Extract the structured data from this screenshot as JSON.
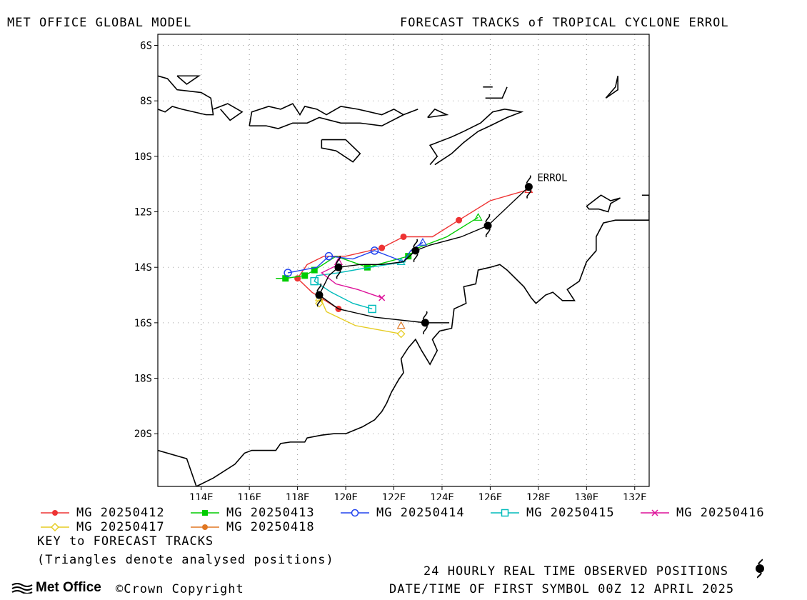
{
  "header": {
    "left_title": "MET OFFICE GLOBAL MODEL",
    "right_title": "FORECAST TRACKS of TROPICAL CYCLONE ERROL"
  },
  "map": {
    "lon_range": [
      112.2,
      132.6
    ],
    "lat_range": [
      -21.9,
      -5.6
    ],
    "x_ticks": [
      {
        "lon": 114,
        "label": "114E"
      },
      {
        "lon": 116,
        "label": "116E"
      },
      {
        "lon": 118,
        "label": "118E"
      },
      {
        "lon": 120,
        "label": "120E"
      },
      {
        "lon": 122,
        "label": "122E"
      },
      {
        "lon": 124,
        "label": "124E"
      },
      {
        "lon": 126,
        "label": "126E"
      },
      {
        "lon": 128,
        "label": "128E"
      },
      {
        "lon": 130,
        "label": "130E"
      },
      {
        "lon": 132,
        "label": "132E"
      }
    ],
    "y_ticks": [
      {
        "lat": -6,
        "label": "6S"
      },
      {
        "lat": -8,
        "label": "8S"
      },
      {
        "lat": -10,
        "label": "10S"
      },
      {
        "lat": -12,
        "label": "12S"
      },
      {
        "lat": -14,
        "label": "14S"
      },
      {
        "lat": -16,
        "label": "16S"
      },
      {
        "lat": -18,
        "label": "18S"
      },
      {
        "lat": -20,
        "label": "20S"
      }
    ],
    "grid": true,
    "storm_label": "ERROL"
  },
  "coastlines": [
    [
      [
        112.2,
        -20.6
      ],
      [
        113.4,
        -20.9
      ],
      [
        113.8,
        -21.9
      ]
    ],
    [
      [
        113.8,
        -21.9
      ],
      [
        114.5,
        -21.6
      ],
      [
        115.4,
        -21.1
      ],
      [
        115.8,
        -20.7
      ],
      [
        116.1,
        -20.6
      ],
      [
        117.1,
        -20.6
      ],
      [
        117.3,
        -20.35
      ],
      [
        117.7,
        -20.3
      ],
      [
        118.3,
        -20.3
      ],
      [
        118.4,
        -20.15
      ],
      [
        119.0,
        -20.05
      ],
      [
        119.5,
        -20.0
      ],
      [
        120.0,
        -20.0
      ],
      [
        120.7,
        -19.75
      ],
      [
        121.2,
        -19.5
      ],
      [
        121.5,
        -19.2
      ],
      [
        121.7,
        -18.9
      ],
      [
        121.9,
        -18.5
      ],
      [
        122.2,
        -18.05
      ],
      [
        122.4,
        -17.8
      ],
      [
        122.3,
        -17.3
      ],
      [
        122.6,
        -16.9
      ],
      [
        122.9,
        -16.6
      ],
      [
        123.15,
        -17.0
      ],
      [
        123.5,
        -17.5
      ],
      [
        123.8,
        -17.0
      ],
      [
        123.6,
        -16.6
      ],
      [
        123.9,
        -16.3
      ],
      [
        124.4,
        -16.2
      ],
      [
        124.5,
        -15.5
      ],
      [
        125.0,
        -15.3
      ],
      [
        124.9,
        -14.7
      ],
      [
        125.4,
        -14.6
      ],
      [
        125.5,
        -14.1
      ],
      [
        126.0,
        -14.0
      ],
      [
        126.4,
        -13.9
      ],
      [
        126.7,
        -14.1
      ],
      [
        127.4,
        -14.7
      ],
      [
        127.7,
        -15.1
      ],
      [
        127.9,
        -15.3
      ],
      [
        128.3,
        -15.0
      ],
      [
        128.6,
        -14.9
      ],
      [
        129.0,
        -15.2
      ],
      [
        129.5,
        -15.2
      ],
      [
        129.2,
        -14.8
      ],
      [
        129.7,
        -14.5
      ],
      [
        130.0,
        -13.8
      ],
      [
        130.4,
        -13.4
      ],
      [
        130.4,
        -12.9
      ],
      [
        130.7,
        -12.4
      ],
      [
        131.2,
        -12.3
      ],
      [
        132.6,
        -12.3
      ],
      [
        132.6,
        -11.4
      ],
      [
        132.3,
        -11.4
      ]
    ],
    [
      [
        130.0,
        -11.8
      ],
      [
        130.6,
        -11.4
      ],
      [
        131.0,
        -11.6
      ],
      [
        131.4,
        -11.5
      ],
      [
        131.0,
        -11.7
      ],
      [
        130.9,
        -12.0
      ],
      [
        130.5,
        -11.9
      ],
      [
        130.1,
        -11.9
      ],
      [
        130.0,
        -11.8
      ]
    ],
    [
      [
        112.2,
        -7.1
      ],
      [
        112.6,
        -7.2
      ],
      [
        113.0,
        -7.6
      ],
      [
        114.0,
        -7.7
      ],
      [
        114.4,
        -7.9
      ],
      [
        114.5,
        -8.5
      ],
      [
        114.2,
        -8.5
      ],
      [
        113.2,
        -8.3
      ],
      [
        112.8,
        -8.2
      ],
      [
        112.5,
        -8.4
      ],
      [
        112.2,
        -8.3
      ]
    ],
    [
      [
        113.0,
        -7.1
      ],
      [
        113.4,
        -7.4
      ],
      [
        113.9,
        -7.1
      ],
      [
        113.0,
        -7.1
      ]
    ],
    [
      [
        114.5,
        -8.3
      ],
      [
        115.1,
        -8.1
      ],
      [
        115.7,
        -8.4
      ],
      [
        115.2,
        -8.7
      ],
      [
        114.8,
        -8.3
      ]
    ],
    [
      [
        116.0,
        -8.9
      ],
      [
        116.1,
        -8.4
      ],
      [
        116.8,
        -8.2
      ],
      [
        117.3,
        -8.3
      ],
      [
        117.8,
        -8.1
      ],
      [
        118.1,
        -8.5
      ],
      [
        118.3,
        -8.2
      ],
      [
        118.8,
        -8.3
      ],
      [
        119.2,
        -8.5
      ],
      [
        119.8,
        -8.2
      ],
      [
        120.5,
        -8.3
      ],
      [
        121.5,
        -8.5
      ],
      [
        122.0,
        -8.3
      ],
      [
        122.4,
        -8.5
      ],
      [
        123.0,
        -8.3
      ],
      [
        122.4,
        -8.5
      ],
      [
        121.5,
        -8.9
      ],
      [
        120.6,
        -8.8
      ],
      [
        119.8,
        -8.8
      ],
      [
        118.9,
        -8.6
      ],
      [
        118.4,
        -8.8
      ],
      [
        117.8,
        -8.8
      ],
      [
        117.2,
        -9.0
      ],
      [
        116.7,
        -8.9
      ],
      [
        116.0,
        -8.9
      ]
    ],
    [
      [
        119.0,
        -9.4
      ],
      [
        120.0,
        -9.4
      ],
      [
        120.6,
        -9.9
      ],
      [
        120.3,
        -10.2
      ],
      [
        119.6,
        -9.8
      ],
      [
        119.0,
        -9.7
      ],
      [
        119.0,
        -9.4
      ]
    ],
    [
      [
        123.4,
        -8.6
      ],
      [
        123.7,
        -8.3
      ],
      [
        124.2,
        -8.5
      ],
      [
        123.4,
        -8.6
      ]
    ],
    [
      [
        123.5,
        -10.3
      ],
      [
        123.8,
        -10.0
      ],
      [
        123.5,
        -9.6
      ],
      [
        124.4,
        -9.3
      ],
      [
        124.9,
        -9.1
      ],
      [
        125.6,
        -8.8
      ],
      [
        126.1,
        -8.4
      ],
      [
        126.6,
        -8.3
      ],
      [
        127.3,
        -8.4
      ],
      [
        126.7,
        -8.6
      ],
      [
        126.0,
        -8.9
      ],
      [
        125.5,
        -9.1
      ],
      [
        124.9,
        -9.5
      ],
      [
        124.4,
        -9.9
      ],
      [
        123.7,
        -10.3
      ]
    ],
    [
      [
        125.8,
        -7.9
      ],
      [
        126.5,
        -7.9
      ],
      [
        126.7,
        -7.5
      ]
    ],
    [
      [
        125.7,
        -7.5
      ],
      [
        126.1,
        -7.5
      ]
    ],
    [
      [
        130.8,
        -7.9
      ],
      [
        131.2,
        -7.5
      ],
      [
        131.3,
        -7.1
      ],
      [
        131.3,
        -7.6
      ],
      [
        130.8,
        -7.9
      ]
    ]
  ],
  "observed": {
    "name": "OBSERVED",
    "color": "#000000",
    "points": [
      [
        127.6,
        -11.1
      ],
      [
        125.9,
        -12.5
      ],
      [
        122.9,
        -13.4
      ],
      [
        119.7,
        -14.0
      ],
      [
        118.9,
        -15.0
      ],
      [
        123.3,
        -16.0
      ]
    ],
    "path": [
      [
        127.6,
        -11.1
      ],
      [
        125.9,
        -12.5
      ],
      [
        124.8,
        -12.9
      ],
      [
        123.5,
        -13.2
      ],
      [
        122.9,
        -13.4
      ],
      [
        122.4,
        -13.8
      ],
      [
        121.5,
        -13.9
      ],
      [
        120.6,
        -13.9
      ],
      [
        119.7,
        -14.0
      ],
      [
        119.3,
        -14.3
      ],
      [
        118.9,
        -15.0
      ],
      [
        119.7,
        -15.5
      ],
      [
        121.2,
        -15.8
      ],
      [
        123.3,
        -16.0
      ],
      [
        124.3,
        -16.0
      ]
    ]
  },
  "series": [
    {
      "name": "MG 20250412",
      "color": "#ee3333",
      "marker": "circle-filled",
      "points": [
        [
          127.6,
          -11.2
        ],
        [
          126.0,
          -11.6
        ],
        [
          124.7,
          -12.3
        ],
        [
          123.6,
          -12.9
        ],
        [
          122.4,
          -12.9
        ],
        [
          121.5,
          -13.3
        ],
        [
          120.0,
          -13.6
        ],
        [
          119.1,
          -13.6
        ],
        [
          118.4,
          -13.9
        ],
        [
          118.0,
          -14.4
        ],
        [
          118.6,
          -14.9
        ],
        [
          119.7,
          -15.5
        ]
      ],
      "markers": [
        [
          124.7,
          -12.3
        ],
        [
          122.4,
          -12.9
        ],
        [
          121.5,
          -13.3
        ],
        [
          118.0,
          -14.4
        ],
        [
          119.7,
          -15.5
        ]
      ],
      "analysed": [
        127.6,
        -11.2
      ]
    },
    {
      "name": "MG 20250413",
      "color": "#00cc00",
      "marker": "square-filled",
      "points": [
        [
          125.5,
          -12.2
        ],
        [
          124.2,
          -12.9
        ],
        [
          123.0,
          -13.3
        ],
        [
          122.6,
          -13.6
        ],
        [
          120.9,
          -14.0
        ],
        [
          119.6,
          -13.6
        ],
        [
          118.7,
          -14.1
        ],
        [
          118.3,
          -14.3
        ],
        [
          117.5,
          -14.4
        ],
        [
          117.1,
          -14.4
        ]
      ],
      "markers": [
        [
          122.6,
          -13.6
        ],
        [
          120.9,
          -14.0
        ],
        [
          118.7,
          -14.1
        ],
        [
          118.3,
          -14.3
        ],
        [
          117.5,
          -14.4
        ]
      ],
      "analysed": [
        125.5,
        -12.2
      ]
    },
    {
      "name": "MG 20250414",
      "color": "#2244ee",
      "marker": "circle-open",
      "points": [
        [
          123.2,
          -13.1
        ],
        [
          122.7,
          -13.4
        ],
        [
          122.4,
          -13.8
        ],
        [
          121.2,
          -13.4
        ],
        [
          120.3,
          -13.7
        ],
        [
          119.3,
          -13.6
        ],
        [
          118.8,
          -14.0
        ],
        [
          117.6,
          -14.2
        ]
      ],
      "markers": [
        [
          121.2,
          -13.4
        ],
        [
          119.3,
          -13.6
        ],
        [
          117.6,
          -14.2
        ]
      ],
      "analysed": [
        123.2,
        -13.1
      ]
    },
    {
      "name": "MG 20250415",
      "color": "#00bbbb",
      "marker": "square-open",
      "points": [
        [
          122.5,
          -13.8
        ],
        [
          121.0,
          -14.0
        ],
        [
          119.7,
          -14.2
        ],
        [
          118.8,
          -14.3
        ],
        [
          118.7,
          -14.5
        ],
        [
          119.4,
          -14.9
        ],
        [
          120.3,
          -15.3
        ],
        [
          121.1,
          -15.5
        ]
      ],
      "markers": [
        [
          118.7,
          -14.5
        ],
        [
          121.1,
          -15.5
        ]
      ],
      "analysed": [
        122.3,
        -13.8
      ]
    },
    {
      "name": "MG 20250416",
      "color": "#dd1199",
      "marker": "x",
      "points": [
        [
          119.7,
          -13.9
        ],
        [
          119.0,
          -14.2
        ],
        [
          119.6,
          -14.6
        ],
        [
          120.5,
          -14.8
        ],
        [
          121.5,
          -15.1
        ]
      ],
      "markers": [
        [
          121.5,
          -15.1
        ]
      ],
      "analysed": [
        119.7,
        -13.8
      ]
    },
    {
      "name": "MG 20250417",
      "color": "#e6cc22",
      "marker": "diamond-open",
      "points": [
        [
          118.9,
          -15.0
        ],
        [
          119.2,
          -15.6
        ],
        [
          120.4,
          -16.1
        ],
        [
          122.3,
          -16.4
        ]
      ],
      "markers": [
        [
          118.9,
          -15.3
        ],
        [
          122.3,
          -16.4
        ]
      ],
      "analysed": [
        118.9,
        -15.1
      ]
    },
    {
      "name": "MG 20250418",
      "color": "#e07722",
      "marker": "circle-filled",
      "points": [],
      "markers": [],
      "analysed": [
        122.3,
        -16.1
      ]
    }
  ],
  "legend": {
    "key_title": "KEY to FORECAST TRACKS",
    "key_note": "(Triangles denote analysed positions)"
  },
  "footer": {
    "observed_note": "24 HOURLY REAL TIME OBSERVED POSITIONS",
    "datetime_note": "DATE/TIME OF FIRST SYMBOL 00Z 12 APRIL 2025",
    "brand": "Met Office",
    "copyright": "©Crown Copyright"
  }
}
